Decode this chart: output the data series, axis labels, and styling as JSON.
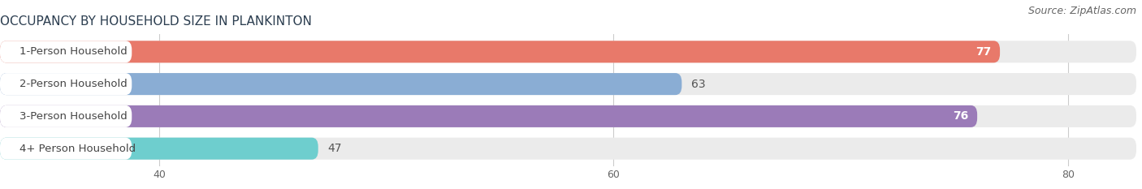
{
  "title": "OCCUPANCY BY HOUSEHOLD SIZE IN PLANKINTON",
  "source": "Source: ZipAtlas.com",
  "categories": [
    "1-Person Household",
    "2-Person Household",
    "3-Person Household",
    "4+ Person Household"
  ],
  "values": [
    77,
    63,
    76,
    47
  ],
  "bar_colors": [
    "#E8796A",
    "#8AADD4",
    "#9B7BB8",
    "#6ECECE"
  ],
  "bar_bg_color": "#EBEBEB",
  "value_inside": [
    true,
    false,
    true,
    false
  ],
  "xmin": 0,
  "xlim_display": [
    33,
    83
  ],
  "xticks": [
    40,
    60,
    80
  ],
  "title_fontsize": 11,
  "source_fontsize": 9,
  "bar_label_fontsize": 9.5,
  "value_fontsize": 10,
  "background_color": "#FFFFFF",
  "grid_color": "#CCCCCC",
  "bar_height": 0.68,
  "label_pill_color": "#FFFFFF"
}
